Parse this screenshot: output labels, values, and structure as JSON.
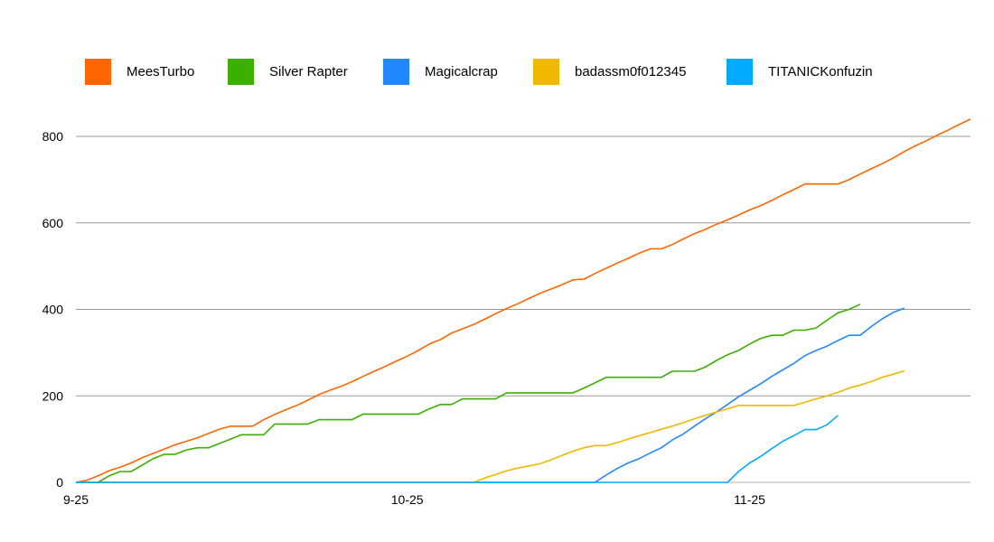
{
  "chart_data": {
    "type": "line",
    "title": "",
    "xlabel": "",
    "ylabel": "",
    "grid": true,
    "legend_position": "top",
    "x_ticks": [
      "9-25",
      "10-25",
      "11-25"
    ],
    "x_range_days": [
      0,
      76
    ],
    "ylim": [
      0,
      840
    ],
    "y_ticks": [
      0,
      200,
      400,
      600,
      800
    ],
    "series": [
      {
        "name": "MeesTurbo",
        "color": "#ff6600",
        "points": [
          [
            0,
            0
          ],
          [
            1,
            5
          ],
          [
            2,
            15
          ],
          [
            3,
            27
          ],
          [
            4,
            35
          ],
          [
            5,
            45
          ],
          [
            6,
            57
          ],
          [
            7,
            67
          ],
          [
            8,
            77
          ],
          [
            9,
            87
          ],
          [
            10,
            95
          ],
          [
            11,
            103
          ],
          [
            12,
            113
          ],
          [
            13,
            123
          ],
          [
            14,
            130
          ],
          [
            15,
            130
          ],
          [
            16,
            130
          ],
          [
            17,
            145
          ],
          [
            18,
            157
          ],
          [
            19,
            168
          ],
          [
            20,
            178
          ],
          [
            21,
            190
          ],
          [
            22,
            203
          ],
          [
            23,
            213
          ],
          [
            24,
            222
          ],
          [
            25,
            233
          ],
          [
            26,
            245
          ],
          [
            27,
            257
          ],
          [
            28,
            268
          ],
          [
            29,
            280
          ],
          [
            30,
            292
          ],
          [
            31,
            305
          ],
          [
            32,
            320
          ],
          [
            33,
            330
          ],
          [
            34,
            345
          ],
          [
            35,
            355
          ],
          [
            36,
            365
          ],
          [
            37,
            377
          ],
          [
            38,
            390
          ],
          [
            39,
            402
          ],
          [
            40,
            413
          ],
          [
            41,
            425
          ],
          [
            42,
            437
          ],
          [
            43,
            447
          ],
          [
            44,
            457
          ],
          [
            45,
            468
          ],
          [
            46,
            470
          ],
          [
            47,
            483
          ],
          [
            48,
            495
          ],
          [
            49,
            507
          ],
          [
            50,
            518
          ],
          [
            51,
            530
          ],
          [
            52,
            540
          ],
          [
            53,
            540
          ],
          [
            54,
            550
          ],
          [
            55,
            563
          ],
          [
            56,
            575
          ],
          [
            57,
            585
          ],
          [
            58,
            597
          ],
          [
            59,
            607
          ],
          [
            60,
            618
          ],
          [
            61,
            630
          ],
          [
            62,
            640
          ],
          [
            63,
            652
          ],
          [
            64,
            665
          ],
          [
            65,
            677
          ],
          [
            66,
            690
          ],
          [
            67,
            690
          ],
          [
            68,
            690
          ],
          [
            69,
            690
          ],
          [
            70,
            700
          ],
          [
            71,
            713
          ],
          [
            72,
            725
          ],
          [
            73,
            737
          ],
          [
            74,
            750
          ],
          [
            75,
            765
          ],
          [
            76,
            778
          ],
          [
            77,
            790
          ],
          [
            78,
            803
          ],
          [
            79,
            815
          ],
          [
            80,
            828
          ],
          [
            81,
            840
          ]
        ]
      },
      {
        "name": "Silver Rapter",
        "color": "#3bb000",
        "points": [
          [
            0,
            0
          ],
          [
            2,
            0
          ],
          [
            3,
            15
          ],
          [
            4,
            25
          ],
          [
            5,
            25
          ],
          [
            6,
            40
          ],
          [
            7,
            55
          ],
          [
            8,
            65
          ],
          [
            9,
            65
          ],
          [
            10,
            75
          ],
          [
            11,
            80
          ],
          [
            12,
            80
          ],
          [
            13,
            90
          ],
          [
            14,
            100
          ],
          [
            15,
            110
          ],
          [
            16,
            110
          ],
          [
            17,
            110
          ],
          [
            18,
            135
          ],
          [
            19,
            135
          ],
          [
            20,
            135
          ],
          [
            21,
            135
          ],
          [
            22,
            145
          ],
          [
            23,
            145
          ],
          [
            24,
            145
          ],
          [
            25,
            145
          ],
          [
            26,
            158
          ],
          [
            27,
            158
          ],
          [
            28,
            158
          ],
          [
            29,
            158
          ],
          [
            30,
            158
          ],
          [
            31,
            158
          ],
          [
            32,
            170
          ],
          [
            33,
            180
          ],
          [
            34,
            180
          ],
          [
            35,
            193
          ],
          [
            36,
            193
          ],
          [
            37,
            193
          ],
          [
            38,
            193
          ],
          [
            39,
            207
          ],
          [
            40,
            207
          ],
          [
            41,
            207
          ],
          [
            42,
            207
          ],
          [
            43,
            207
          ],
          [
            44,
            207
          ],
          [
            45,
            207
          ],
          [
            46,
            218
          ],
          [
            47,
            230
          ],
          [
            48,
            243
          ],
          [
            49,
            243
          ],
          [
            50,
            243
          ],
          [
            51,
            243
          ],
          [
            52,
            243
          ],
          [
            53,
            243
          ],
          [
            54,
            257
          ],
          [
            55,
            257
          ],
          [
            56,
            257
          ],
          [
            57,
            267
          ],
          [
            58,
            282
          ],
          [
            59,
            295
          ],
          [
            60,
            305
          ],
          [
            61,
            320
          ],
          [
            62,
            333
          ],
          [
            63,
            340
          ],
          [
            64,
            340
          ],
          [
            65,
            352
          ],
          [
            66,
            352
          ],
          [
            67,
            357
          ],
          [
            68,
            375
          ],
          [
            69,
            392
          ],
          [
            70,
            400
          ],
          [
            71,
            412
          ]
        ]
      },
      {
        "name": "Magicalcrap",
        "color": "#2288ff",
        "points": [
          [
            0,
            0
          ],
          [
            47,
            0
          ],
          [
            48,
            17
          ],
          [
            49,
            32
          ],
          [
            50,
            45
          ],
          [
            51,
            55
          ],
          [
            52,
            68
          ],
          [
            53,
            80
          ],
          [
            54,
            98
          ],
          [
            55,
            112
          ],
          [
            56,
            130
          ],
          [
            57,
            147
          ],
          [
            58,
            163
          ],
          [
            59,
            180
          ],
          [
            60,
            198
          ],
          [
            61,
            213
          ],
          [
            62,
            228
          ],
          [
            63,
            245
          ],
          [
            64,
            260
          ],
          [
            65,
            275
          ],
          [
            66,
            293
          ],
          [
            67,
            305
          ],
          [
            68,
            315
          ],
          [
            69,
            328
          ],
          [
            70,
            340
          ],
          [
            71,
            340
          ],
          [
            72,
            360
          ],
          [
            73,
            378
          ],
          [
            74,
            393
          ],
          [
            75,
            403
          ]
        ]
      },
      {
        "name": "badassm0f012345",
        "color": "#f0b800",
        "points": [
          [
            0,
            0
          ],
          [
            36,
            0
          ],
          [
            37,
            10
          ],
          [
            38,
            18
          ],
          [
            39,
            27
          ],
          [
            40,
            33
          ],
          [
            41,
            38
          ],
          [
            42,
            43
          ],
          [
            43,
            52
          ],
          [
            44,
            62
          ],
          [
            45,
            72
          ],
          [
            46,
            80
          ],
          [
            47,
            85
          ],
          [
            48,
            85
          ],
          [
            49,
            92
          ],
          [
            50,
            100
          ],
          [
            51,
            108
          ],
          [
            52,
            115
          ],
          [
            53,
            123
          ],
          [
            54,
            130
          ],
          [
            55,
            138
          ],
          [
            56,
            147
          ],
          [
            57,
            155
          ],
          [
            58,
            163
          ],
          [
            59,
            170
          ],
          [
            60,
            178
          ],
          [
            61,
            178
          ],
          [
            62,
            178
          ],
          [
            63,
            178
          ],
          [
            64,
            178
          ],
          [
            65,
            178
          ],
          [
            66,
            185
          ],
          [
            67,
            193
          ],
          [
            68,
            200
          ],
          [
            69,
            208
          ],
          [
            70,
            218
          ],
          [
            71,
            225
          ],
          [
            72,
            233
          ],
          [
            73,
            243
          ],
          [
            74,
            250
          ],
          [
            75,
            258
          ]
        ]
      },
      {
        "name": "TITANICKonfuzin",
        "color": "#00aaff",
        "points": [
          [
            0,
            0
          ],
          [
            59,
            0
          ],
          [
            60,
            25
          ],
          [
            61,
            45
          ],
          [
            62,
            60
          ],
          [
            63,
            78
          ],
          [
            64,
            95
          ],
          [
            65,
            108
          ],
          [
            66,
            122
          ],
          [
            67,
            122
          ],
          [
            68,
            133
          ],
          [
            69,
            155
          ]
        ]
      }
    ]
  }
}
